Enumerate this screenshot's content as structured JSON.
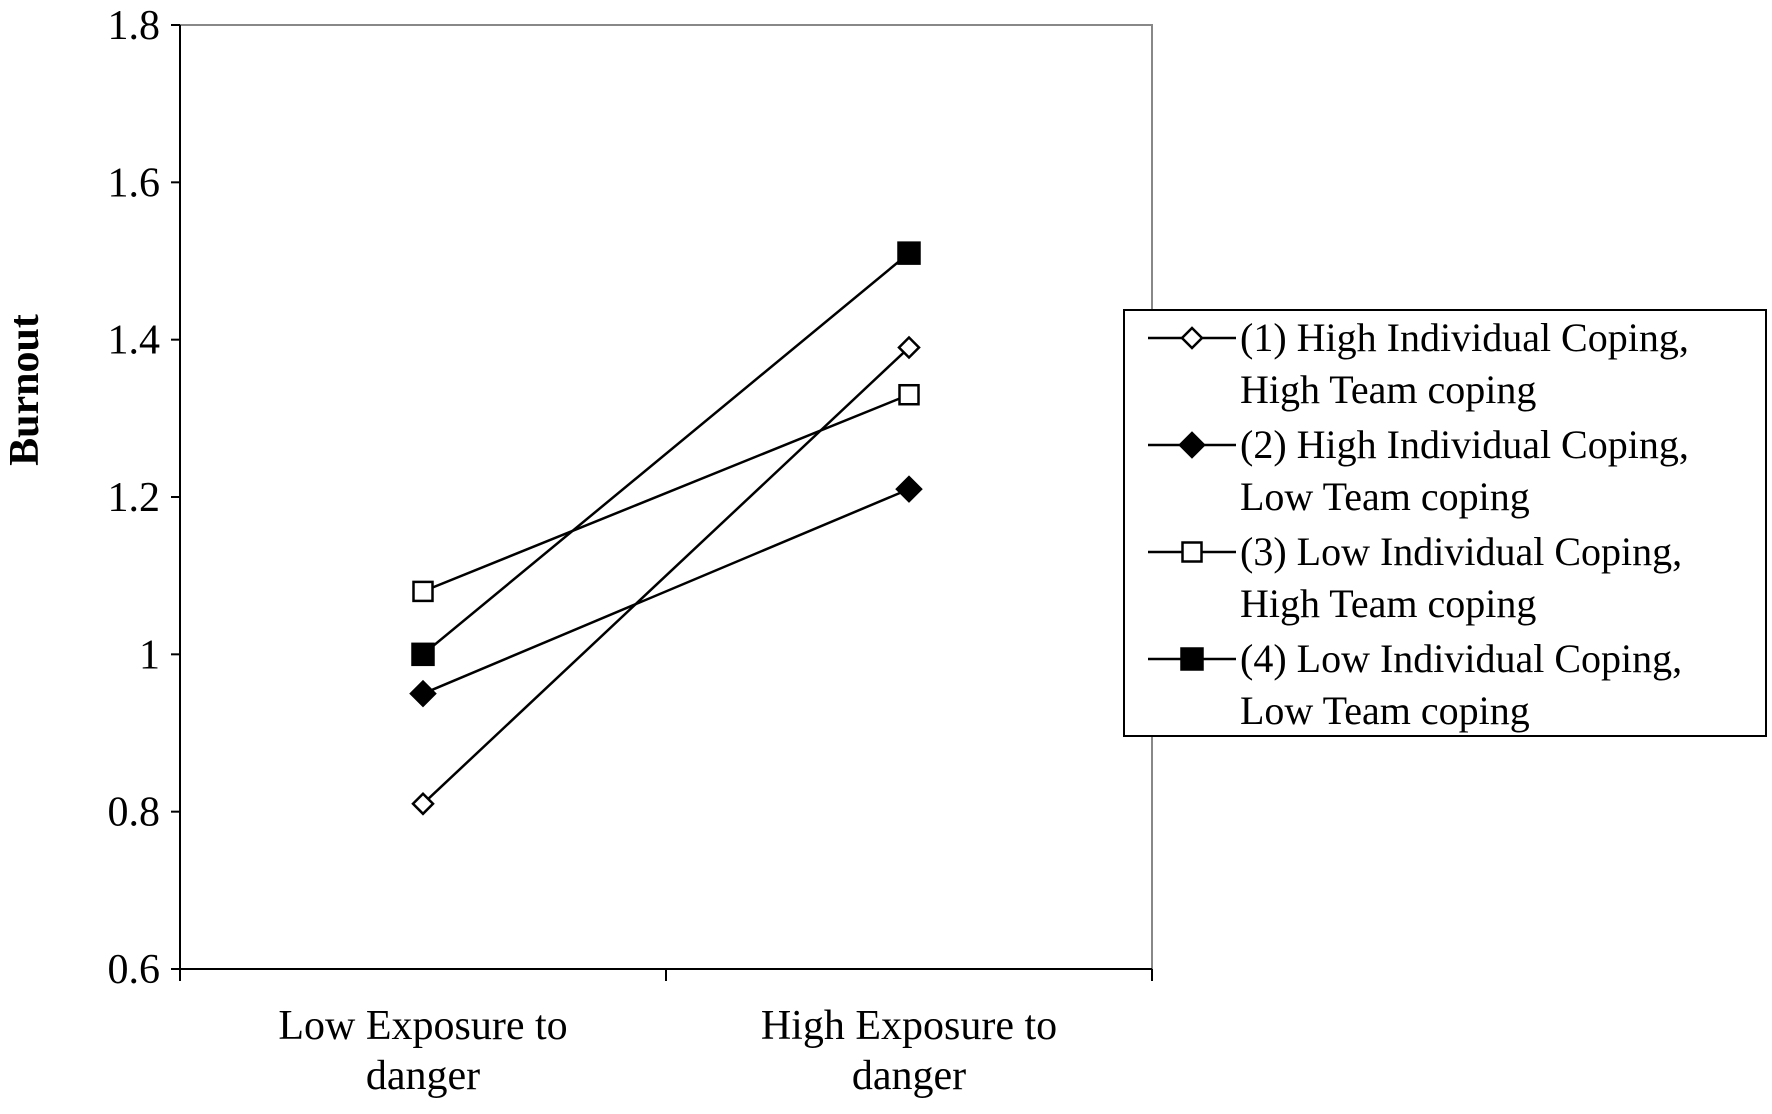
{
  "chart_data": {
    "type": "line",
    "title": "",
    "xlabel": "",
    "ylabel": "Burnout",
    "ylim": [
      0.6,
      1.8
    ],
    "yticks": [
      "0.6",
      "0.8",
      "1",
      "1.2",
      "1.4",
      "1.6",
      "1.8"
    ],
    "categories": [
      [
        "Low Exposure to",
        "danger"
      ],
      [
        "High Exposure to",
        "danger"
      ]
    ],
    "grid": false,
    "legend_position": "right",
    "series": [
      {
        "name": [
          "(1) High Individual Coping,",
          "High Team coping"
        ],
        "marker": "diamond-open",
        "values": [
          0.81,
          1.39
        ]
      },
      {
        "name": [
          "(2) High Individual Coping,",
          "Low Team coping"
        ],
        "marker": "diamond-filled",
        "values": [
          0.95,
          1.21
        ]
      },
      {
        "name": [
          "(3) Low Individual Coping,",
          "High Team coping"
        ],
        "marker": "square-open",
        "values": [
          1.08,
          1.33
        ]
      },
      {
        "name": [
          "(4) Low Individual Coping,",
          "Low Team coping"
        ],
        "marker": "square-filled",
        "values": [
          1.0,
          1.51
        ]
      }
    ]
  }
}
